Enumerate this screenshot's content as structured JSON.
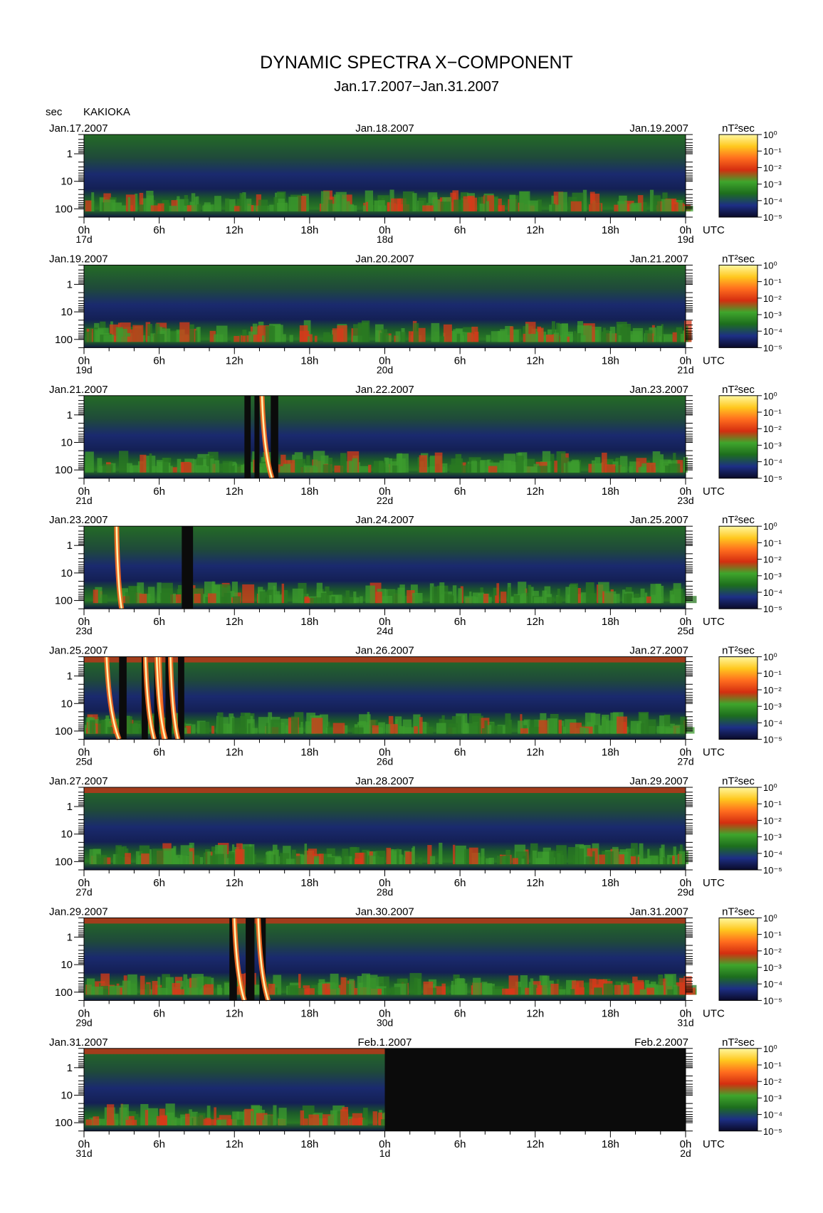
{
  "chart_data": {
    "type": "heatmap",
    "title": "DYNAMIC SPECTRA X−COMPONENT",
    "subtitle": "Jan.17.2007−Jan.31.2007",
    "station": "KAKIOKA",
    "ylabel": "sec",
    "y_axis": {
      "scale": "log",
      "ylim": [
        0.2,
        200
      ],
      "ticks": [
        1,
        10,
        100
      ],
      "tick_labels": [
        "1",
        "10",
        "100"
      ],
      "direction": "inverted"
    },
    "x_tick_labels": [
      "0h",
      "6h",
      "12h",
      "18h",
      "0h",
      "6h",
      "12h",
      "18h",
      "0h"
    ],
    "time_zone": "UTC",
    "colorbar": {
      "unit": "nT²sec",
      "scale": "log",
      "range": [
        1e-05,
        1
      ],
      "tick_labels": [
        "10⁰",
        "10⁻¹",
        "10⁻²",
        "10⁻³",
        "10⁻⁴",
        "10⁻⁵"
      ],
      "colors": [
        "#0a0a28",
        "#1d2f85",
        "#1d6e1d",
        "#3fa52c",
        "#d42e10",
        "#ff6d1e",
        "#ffc81e",
        "#fff7a0"
      ]
    },
    "panels": [
      {
        "left_date": "Jan.17.2007",
        "mid_date": "Jan.18.2007",
        "right_date": "Jan.19.2007",
        "day_labels": [
          "17d",
          "18d",
          "19d"
        ],
        "gaps": [],
        "events": [],
        "low_freq_activity": [
          [
            0,
            48,
            0.55
          ]
        ]
      },
      {
        "left_date": "Jan.19.2007",
        "mid_date": "Jan.20.2007",
        "right_date": "Jan.21.2007",
        "day_labels": [
          "19d",
          "20d",
          "21d"
        ],
        "gaps": [],
        "events": [],
        "low_freq_activity": [
          [
            0,
            48,
            0.5
          ]
        ]
      },
      {
        "left_date": "Jan.21.2007",
        "mid_date": "Jan.22.2007",
        "right_date": "Jan.23.2007",
        "day_labels": [
          "21d",
          "22d",
          "23d"
        ],
        "gaps": [
          [
            12.8,
            13.3
          ],
          [
            13.6,
            14.0
          ],
          [
            14.9,
            15.5
          ]
        ],
        "events": [
          [
            14.2,
            15.0
          ]
        ],
        "low_freq_activity": [
          [
            0,
            48,
            0.3
          ]
        ]
      },
      {
        "left_date": "Jan.23.2007",
        "mid_date": "Jan.24.2007",
        "right_date": "Jan.25.2007",
        "day_labels": [
          "23d",
          "24d",
          "25d"
        ],
        "gaps": [
          [
            7.8,
            8.7
          ]
        ],
        "events": [
          [
            2.6,
            3.0
          ]
        ],
        "low_freq_activity": [
          [
            0,
            48,
            0.25
          ]
        ]
      },
      {
        "left_date": "Jan.25.2007",
        "mid_date": "Jan.26.2007",
        "right_date": "Jan.27.2007",
        "day_labels": [
          "25d",
          "26d",
          "27d"
        ],
        "gaps": [
          [
            2.8,
            3.4
          ],
          [
            4.6,
            5.1
          ],
          [
            5.6,
            6.0
          ],
          [
            6.5,
            7.0
          ],
          [
            7.5,
            8.0
          ]
        ],
        "events": [
          [
            6.0,
            6.4
          ],
          [
            1.8,
            2.8
          ],
          [
            4.9,
            5.6
          ],
          [
            5.8,
            6.5
          ],
          [
            6.9,
            7.5
          ]
        ],
        "low_freq_activity": [
          [
            0,
            48,
            0.3
          ]
        ]
      },
      {
        "left_date": "Jan.27.2007",
        "mid_date": "Jan.28.2007",
        "right_date": "Jan.29.2007",
        "day_labels": [
          "27d",
          "28d",
          "29d"
        ],
        "gaps": [],
        "events": [],
        "low_freq_activity": [
          [
            0,
            48,
            0.25
          ]
        ]
      },
      {
        "left_date": "Jan.29.2007",
        "mid_date": "Jan.30.2007",
        "right_date": "Jan.31.2007",
        "day_labels": [
          "29d",
          "30d",
          "31d"
        ],
        "gaps": [
          [
            11.6,
            12.2
          ],
          [
            12.9,
            13.6
          ],
          [
            14.0,
            14.5
          ]
        ],
        "events": [
          [
            12.0,
            12.8
          ],
          [
            13.9,
            14.7
          ]
        ],
        "low_freq_activity": [
          [
            0,
            48,
            0.6
          ]
        ]
      },
      {
        "left_date": "Jan.31.2007",
        "mid_date": "Feb.1.2007",
        "right_date": "Feb.2.2007",
        "day_labels": [
          "31d",
          "1d",
          "2d"
        ],
        "gaps": [
          [
            24,
            48
          ]
        ],
        "events": [],
        "low_freq_activity": [
          [
            0,
            24,
            0.6
          ]
        ]
      }
    ]
  }
}
